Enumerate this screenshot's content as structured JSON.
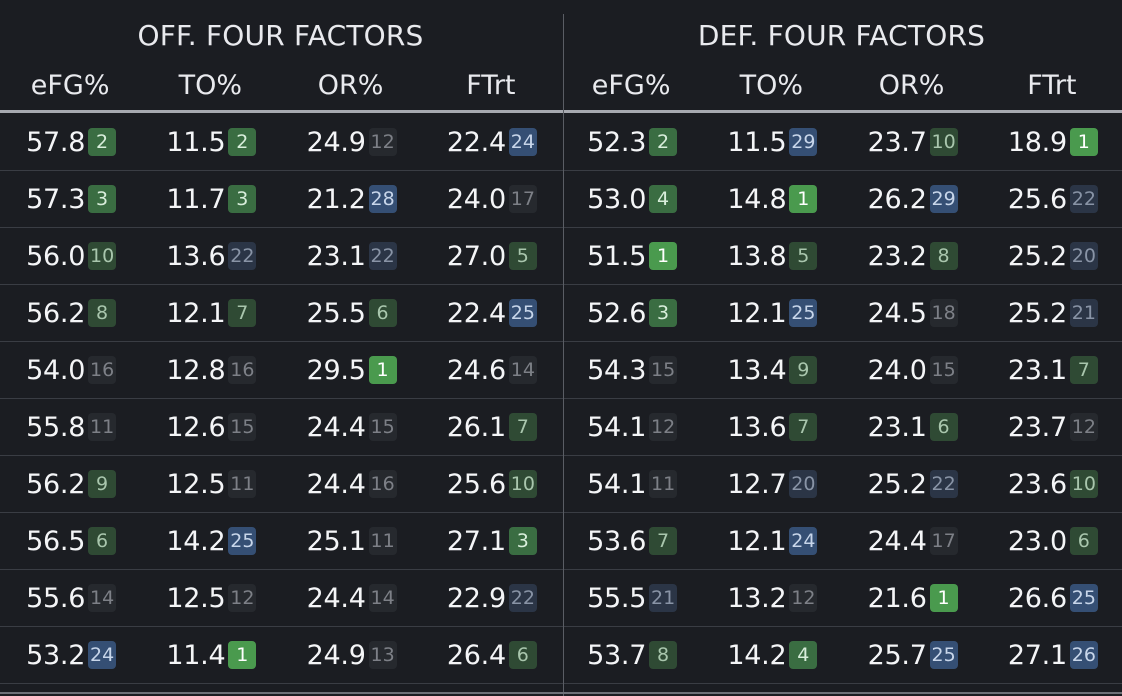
{
  "header": {
    "off_title": "OFF. FOUR FACTORS",
    "def_title": "DEF. FOUR FACTORS",
    "columns": [
      "eFG%",
      "TO%",
      "OR%",
      "FTrt",
      "eFG%",
      "TO%",
      "OR%",
      "FTrt"
    ]
  },
  "colors": {
    "background": "#1b1d22",
    "rank_top": "#4a9a4e",
    "rank_good": "#3a6d42",
    "rank_fair": "#2f4a34",
    "rank_neutral": "#26292e",
    "rank_poor": "#2b3546",
    "rank_worst": "#354f74"
  },
  "rows": [
    [
      {
        "v": "57.8",
        "r": "2"
      },
      {
        "v": "11.5",
        "r": "2"
      },
      {
        "v": "24.9",
        "r": "12"
      },
      {
        "v": "22.4",
        "r": "24"
      },
      {
        "v": "52.3",
        "r": "2"
      },
      {
        "v": "11.5",
        "r": "29"
      },
      {
        "v": "23.7",
        "r": "10"
      },
      {
        "v": "18.9",
        "r": "1"
      }
    ],
    [
      {
        "v": "57.3",
        "r": "3"
      },
      {
        "v": "11.7",
        "r": "3"
      },
      {
        "v": "21.2",
        "r": "28"
      },
      {
        "v": "24.0",
        "r": "17"
      },
      {
        "v": "53.0",
        "r": "4"
      },
      {
        "v": "14.8",
        "r": "1"
      },
      {
        "v": "26.2",
        "r": "29"
      },
      {
        "v": "25.6",
        "r": "22"
      }
    ],
    [
      {
        "v": "56.0",
        "r": "10"
      },
      {
        "v": "13.6",
        "r": "22"
      },
      {
        "v": "23.1",
        "r": "22"
      },
      {
        "v": "27.0",
        "r": "5"
      },
      {
        "v": "51.5",
        "r": "1"
      },
      {
        "v": "13.8",
        "r": "5"
      },
      {
        "v": "23.2",
        "r": "8"
      },
      {
        "v": "25.2",
        "r": "20"
      }
    ],
    [
      {
        "v": "56.2",
        "r": "8"
      },
      {
        "v": "12.1",
        "r": "7"
      },
      {
        "v": "25.5",
        "r": "6"
      },
      {
        "v": "22.4",
        "r": "25"
      },
      {
        "v": "52.6",
        "r": "3"
      },
      {
        "v": "12.1",
        "r": "25"
      },
      {
        "v": "24.5",
        "r": "18"
      },
      {
        "v": "25.2",
        "r": "21"
      }
    ],
    [
      {
        "v": "54.0",
        "r": "16"
      },
      {
        "v": "12.8",
        "r": "16"
      },
      {
        "v": "29.5",
        "r": "1"
      },
      {
        "v": "24.6",
        "r": "14"
      },
      {
        "v": "54.3",
        "r": "15"
      },
      {
        "v": "13.4",
        "r": "9"
      },
      {
        "v": "24.0",
        "r": "15"
      },
      {
        "v": "23.1",
        "r": "7"
      }
    ],
    [
      {
        "v": "55.8",
        "r": "11"
      },
      {
        "v": "12.6",
        "r": "15"
      },
      {
        "v": "24.4",
        "r": "15"
      },
      {
        "v": "26.1",
        "r": "7"
      },
      {
        "v": "54.1",
        "r": "12"
      },
      {
        "v": "13.6",
        "r": "7"
      },
      {
        "v": "23.1",
        "r": "6"
      },
      {
        "v": "23.7",
        "r": "12"
      }
    ],
    [
      {
        "v": "56.2",
        "r": "9"
      },
      {
        "v": "12.5",
        "r": "11"
      },
      {
        "v": "24.4",
        "r": "16"
      },
      {
        "v": "25.6",
        "r": "10"
      },
      {
        "v": "54.1",
        "r": "11"
      },
      {
        "v": "12.7",
        "r": "20"
      },
      {
        "v": "25.2",
        "r": "22"
      },
      {
        "v": "23.6",
        "r": "10"
      }
    ],
    [
      {
        "v": "56.5",
        "r": "6"
      },
      {
        "v": "14.2",
        "r": "25"
      },
      {
        "v": "25.1",
        "r": "11"
      },
      {
        "v": "27.1",
        "r": "3"
      },
      {
        "v": "53.6",
        "r": "7"
      },
      {
        "v": "12.1",
        "r": "24"
      },
      {
        "v": "24.4",
        "r": "17"
      },
      {
        "v": "23.0",
        "r": "6"
      }
    ],
    [
      {
        "v": "55.6",
        "r": "14"
      },
      {
        "v": "12.5",
        "r": "12"
      },
      {
        "v": "24.4",
        "r": "14"
      },
      {
        "v": "22.9",
        "r": "22"
      },
      {
        "v": "55.5",
        "r": "21"
      },
      {
        "v": "13.2",
        "r": "12"
      },
      {
        "v": "21.6",
        "r": "1"
      },
      {
        "v": "26.6",
        "r": "25"
      }
    ],
    [
      {
        "v": "53.2",
        "r": "24"
      },
      {
        "v": "11.4",
        "r": "1"
      },
      {
        "v": "24.9",
        "r": "13"
      },
      {
        "v": "26.4",
        "r": "6"
      },
      {
        "v": "53.7",
        "r": "8"
      },
      {
        "v": "14.2",
        "r": "4"
      },
      {
        "v": "25.7",
        "r": "25"
      },
      {
        "v": "27.1",
        "r": "26"
      }
    ]
  ]
}
